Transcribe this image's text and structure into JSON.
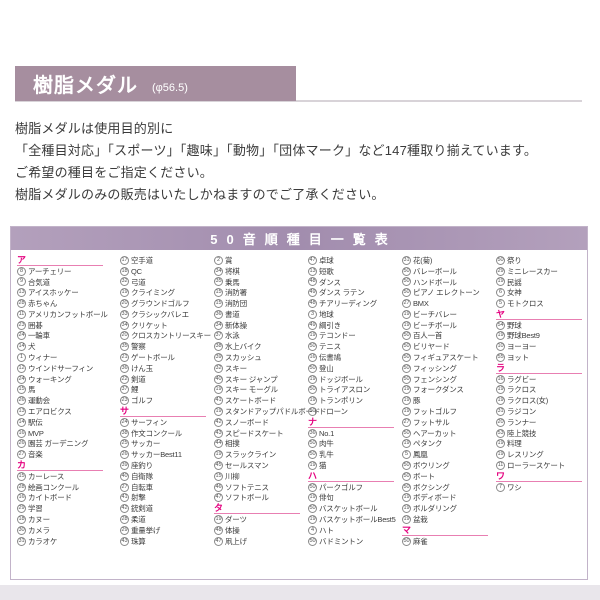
{
  "colors": {
    "header_bar": "#a68e9f",
    "table_title_bar": "#a28dae",
    "table_border": "#c2b3c9",
    "section_pink": "#e4007f",
    "text": "#3a3a3a"
  },
  "header": {
    "title": "樹脂メダル",
    "subtitle": "(φ56.5)"
  },
  "intro_lines": [
    "樹脂メダルは使用目的別に",
    "「全種目対応」「スポーツ」「趣味」「動物」「団体マーク」など147種取り揃えています。",
    "ご希望の種目をご指定ください。",
    "樹脂メダルのみの販売はいたしかねますのでご了承ください。"
  ],
  "table": {
    "title": "50音順種目一覧表",
    "columns": [
      [
        {
          "s": "ア"
        },
        {
          "n": 8,
          "t": "アーチェリー"
        },
        {
          "n": 9,
          "t": "合気道"
        },
        {
          "n": 13,
          "t": "アイスホッケー"
        },
        {
          "n": 28,
          "t": "赤ちゃん"
        },
        {
          "n": 11,
          "t": "アメリカンフットボール"
        },
        {
          "n": 23,
          "t": "囲碁"
        },
        {
          "n": 24,
          "t": "一輪車"
        },
        {
          "n": 14,
          "t": "犬"
        },
        {
          "n": 1,
          "t": "ウィナー"
        },
        {
          "n": 12,
          "t": "ウインドサーフィン"
        },
        {
          "n": 24,
          "t": "ウォーキング"
        },
        {
          "n": 15,
          "t": "馬"
        },
        {
          "n": 26,
          "t": "運動会"
        },
        {
          "n": 13,
          "t": "エアロビクス"
        },
        {
          "n": 14,
          "t": "駅伝"
        },
        {
          "n": 16,
          "t": "MVP"
        },
        {
          "n": 26,
          "t": "園芸 ガーデニング"
        },
        {
          "n": 27,
          "t": "音楽"
        },
        {
          "s": "カ"
        },
        {
          "n": 15,
          "t": "カーレース"
        },
        {
          "n": 28,
          "t": "絵画コンクール"
        },
        {
          "n": 16,
          "t": "カイトボード"
        },
        {
          "n": 29,
          "t": "学習"
        },
        {
          "n": 18,
          "t": "カヌー"
        },
        {
          "n": 30,
          "t": "カメラ"
        },
        {
          "n": 31,
          "t": "カラオケ"
        }
      ],
      [
        {
          "n": 17,
          "t": "空手道"
        },
        {
          "n": 18,
          "t": "QC"
        },
        {
          "n": 32,
          "t": "弓道"
        },
        {
          "n": 19,
          "t": "クライミング"
        },
        {
          "n": 20,
          "t": "グラウンドゴルフ"
        },
        {
          "n": 33,
          "t": "クラシックバレエ"
        },
        {
          "n": 34,
          "t": "クリケット"
        },
        {
          "n": 20,
          "t": "クロスカントリースキー"
        },
        {
          "n": 35,
          "t": "警察"
        },
        {
          "n": 21,
          "t": "ゲートボール"
        },
        {
          "n": 36,
          "t": "けん玉"
        },
        {
          "n": 22,
          "t": "剣道"
        },
        {
          "n": 37,
          "t": "鯉"
        },
        {
          "n": 23,
          "t": "ゴルフ"
        },
        {
          "s": "サ"
        },
        {
          "n": 24,
          "t": "サーフィン"
        },
        {
          "n": 38,
          "t": "作文コンクール"
        },
        {
          "n": 25,
          "t": "サッカー"
        },
        {
          "n": 26,
          "t": "サッカーBest11"
        },
        {
          "n": 39,
          "t": "座釣り"
        },
        {
          "n": 40,
          "t": "自衛隊"
        },
        {
          "n": 27,
          "t": "自転車"
        },
        {
          "n": 41,
          "t": "射撃"
        },
        {
          "n": 42,
          "t": "銃剣道"
        },
        {
          "n": 28,
          "t": "柔道"
        },
        {
          "n": 29,
          "t": "重量挙げ"
        },
        {
          "n": 43,
          "t": "珠算"
        }
      ],
      [
        {
          "n": 2,
          "t": "賞"
        },
        {
          "n": 34,
          "t": "将棋"
        },
        {
          "n": 35,
          "t": "乗馬"
        },
        {
          "n": 15,
          "t": "消防署"
        },
        {
          "n": 15,
          "t": "消防団"
        },
        {
          "n": 36,
          "t": "書道"
        },
        {
          "n": 34,
          "t": "新体操"
        },
        {
          "n": 37,
          "t": "水泳"
        },
        {
          "n": 38,
          "t": "水上バイク"
        },
        {
          "n": 39,
          "t": "スカッシュ"
        },
        {
          "n": 32,
          "t": "スキー"
        },
        {
          "n": 40,
          "t": "スキー ジャンプ"
        },
        {
          "n": 19,
          "t": "スキー モーグル"
        },
        {
          "n": 41,
          "t": "スケートボード"
        },
        {
          "n": 19,
          "t": "スタンドアップパドルボード"
        },
        {
          "n": 42,
          "t": "スノーボード"
        },
        {
          "n": 43,
          "t": "スピードスケート"
        },
        {
          "n": 44,
          "t": "相撲"
        },
        {
          "n": 19,
          "t": "スラックライン"
        },
        {
          "n": 45,
          "t": "セールスマン"
        },
        {
          "n": 15,
          "t": "川柳"
        },
        {
          "n": 46,
          "t": "ソフトテニス"
        },
        {
          "n": 47,
          "t": "ソフトボール"
        },
        {
          "s": "タ"
        },
        {
          "n": 19,
          "t": "ダーツ"
        },
        {
          "n": 48,
          "t": "体操"
        },
        {
          "n": 47,
          "t": "凧上げ"
        }
      ],
      [
        {
          "n": 47,
          "t": "卓球"
        },
        {
          "n": 13,
          "t": "短歌"
        },
        {
          "n": 48,
          "t": "ダンス"
        },
        {
          "n": 49,
          "t": "ダンス ラテン"
        },
        {
          "n": 48,
          "t": "チアリーディング"
        },
        {
          "n": 3,
          "t": "地球"
        },
        {
          "n": 49,
          "t": "綱引き"
        },
        {
          "n": 19,
          "t": "テコンドー"
        },
        {
          "n": 50,
          "t": "テニス"
        },
        {
          "n": 16,
          "t": "伝書鳩"
        },
        {
          "n": 50,
          "t": "登山"
        },
        {
          "n": 19,
          "t": "ドッジボール"
        },
        {
          "n": 50,
          "t": "トライアスロン"
        },
        {
          "n": 19,
          "t": "トランポリン"
        },
        {
          "n": 50,
          "t": "ドローン"
        },
        {
          "s": "ナ"
        },
        {
          "n": 36,
          "t": "No.1"
        },
        {
          "n": 50,
          "t": "肉牛"
        },
        {
          "n": 50,
          "t": "乳牛"
        },
        {
          "n": 19,
          "t": "猫"
        },
        {
          "s": "ハ"
        },
        {
          "n": 50,
          "t": "パークゴルフ"
        },
        {
          "n": 19,
          "t": "俳句"
        },
        {
          "n": 50,
          "t": "バスケットボール"
        },
        {
          "n": 19,
          "t": "バスケットボールBest5"
        },
        {
          "n": 4,
          "t": "ハト"
        },
        {
          "n": 50,
          "t": "バドミントン"
        }
      ],
      [
        {
          "n": 31,
          "t": "花(菊)"
        },
        {
          "n": 50,
          "t": "バレーボール"
        },
        {
          "n": 50,
          "t": "ハンドボール"
        },
        {
          "n": 50,
          "t": "ピアノ エレクトーン"
        },
        {
          "n": 27,
          "t": "BMX"
        },
        {
          "n": 19,
          "t": "ビーチバレー"
        },
        {
          "n": 19,
          "t": "ビーチボール"
        },
        {
          "n": 50,
          "t": "百人一首"
        },
        {
          "n": 50,
          "t": "ビリヤード"
        },
        {
          "n": 50,
          "t": "フィギュアスケート"
        },
        {
          "n": 50,
          "t": "フィッシング"
        },
        {
          "n": 50,
          "t": "フェンシング"
        },
        {
          "n": 19,
          "t": "フォークダンス"
        },
        {
          "n": 19,
          "t": "豚"
        },
        {
          "n": 19,
          "t": "フットゴルフ"
        },
        {
          "n": 27,
          "t": "フットサル"
        },
        {
          "n": 50,
          "t": "ヘアーカット"
        },
        {
          "n": 19,
          "t": "ペタンク"
        },
        {
          "n": 5,
          "t": "鳳凰"
        },
        {
          "n": 50,
          "t": "ボウリング"
        },
        {
          "n": 50,
          "t": "ボート"
        },
        {
          "n": 50,
          "t": "ボクシング"
        },
        {
          "n": 19,
          "t": "ボディボード"
        },
        {
          "n": 19,
          "t": "ボルダリング"
        },
        {
          "n": 19,
          "t": "盆栽"
        },
        {
          "s": "マ"
        },
        {
          "n": 50,
          "t": "麻雀"
        }
      ],
      [
        {
          "n": 50,
          "t": "祭り"
        },
        {
          "n": 29,
          "t": "ミニレースカー"
        },
        {
          "n": 19,
          "t": "民謡"
        },
        {
          "n": 6,
          "t": "女神"
        },
        {
          "n": 5,
          "t": "モトクロス"
        },
        {
          "s": "ヤ"
        },
        {
          "n": 54,
          "t": "野球"
        },
        {
          "n": 19,
          "t": "野球Best9"
        },
        {
          "n": 10,
          "t": "ヨーヨー"
        },
        {
          "n": 55,
          "t": "ヨット"
        },
        {
          "s": "ラ"
        },
        {
          "n": 16,
          "t": "ラグビー"
        },
        {
          "n": 19,
          "t": "ラクロス"
        },
        {
          "n": 19,
          "t": "ラクロス(女)"
        },
        {
          "n": 31,
          "t": "ラジコン"
        },
        {
          "n": 20,
          "t": "ランナー"
        },
        {
          "n": 53,
          "t": "陸上競技"
        },
        {
          "n": 19,
          "t": "料理"
        },
        {
          "n": 19,
          "t": "レスリング"
        },
        {
          "n": 11,
          "t": "ローラースケート"
        },
        {
          "s": "ワ"
        },
        {
          "n": 7,
          "t": "ワシ"
        }
      ]
    ]
  }
}
